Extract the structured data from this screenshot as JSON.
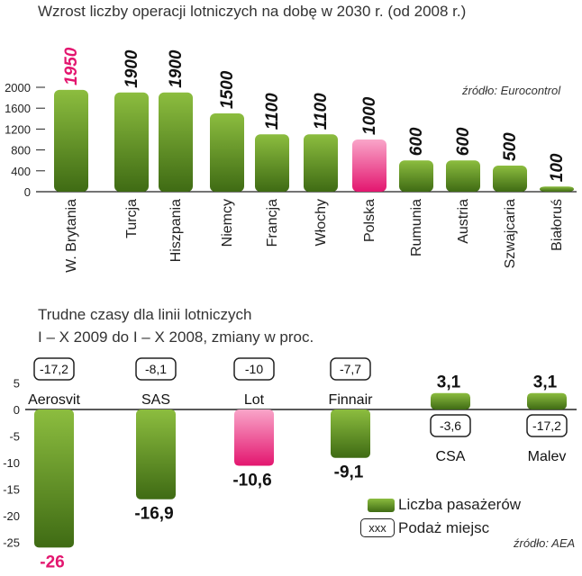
{
  "chart_data": [
    {
      "type": "bar",
      "title": "Wzrost liczby operacji lotniczych na dobę w 2030 r. (od 2008 r.)",
      "source": "źródło: Eurocontrol",
      "categories": [
        "W. Brytania",
        "Turcja",
        "Hiszpania",
        "Niemcy",
        "Francja",
        "Włochy",
        "Polska",
        "Rumunia",
        "Austria",
        "Szwajcaria",
        "Białoruś"
      ],
      "values": [
        1950,
        1900,
        1900,
        1500,
        1100,
        1100,
        1000,
        600,
        600,
        500,
        100
      ],
      "value_labels": [
        "1950",
        "1900",
        "1900",
        "1500",
        "1100",
        "1100",
        "1000",
        "600",
        "600",
        "500",
        "100"
      ],
      "highlight": [
        "W. Brytania",
        "Polska"
      ],
      "yticks": [
        0,
        400,
        800,
        1200,
        1600,
        2000
      ],
      "ytick_labels": [
        "0",
        "400",
        "800",
        "1200",
        "1600",
        "2000"
      ],
      "ylim": [
        0,
        2000
      ],
      "xlabel": "",
      "ylabel": ""
    },
    {
      "type": "bar",
      "title_lines": [
        "Trudne czasy dla linii lotniczych",
        "I – X 2009 do I – X 2008, zmiany w proc."
      ],
      "source": "źródło: AEA",
      "categories": [
        "Aerosvit",
        "SAS",
        "Lot",
        "Finnair",
        "CSA",
        "Malev"
      ],
      "series": [
        {
          "name": "Liczba pasażerów",
          "values": [
            -26,
            -16.9,
            -10.6,
            -9.1,
            3.1,
            3.1
          ],
          "labels": [
            "-26",
            "-16,9",
            "-10,6",
            "-9,1",
            "3,1",
            "3,1"
          ]
        },
        {
          "name": "Podaż miejsc",
          "values": [
            -17.2,
            -8.1,
            -10,
            -7.7,
            -3.6,
            -17.2
          ],
          "labels": [
            "-17,2",
            "-8,1",
            "-10",
            "-7,7",
            "-3,6",
            "-17,2"
          ]
        }
      ],
      "highlight": [
        "Lot"
      ],
      "yticks": [
        5,
        0,
        -5,
        -10,
        -15,
        -20,
        -25
      ],
      "ytick_labels": [
        "5",
        "0",
        "-5",
        "-10",
        "-15",
        "-20",
        "-25"
      ],
      "ylim": [
        -26,
        5
      ],
      "legend": {
        "bar_label": "Liczba pasażerów",
        "box_sample": "xxx",
        "box_label": "Podaż miejsc"
      }
    }
  ],
  "colors": {
    "bar_green_light": "#8cbd3f",
    "bar_green_dark": "#3f6b14",
    "bar_pink_light": "#f9a5c9",
    "bar_pink_dark": "#e3166f",
    "highlight_text": "#e3166f"
  }
}
